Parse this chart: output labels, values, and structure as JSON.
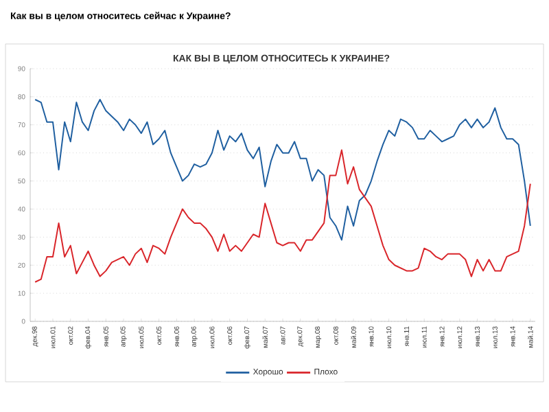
{
  "chart_data": {
    "type": "line",
    "title": "Как вы в целом относитесь сейчас к Украине?",
    "subtitle": "КАК ВЫ В ЦЕЛОМ ОТНОСИТЕСЬ К УКРАИНЕ?",
    "categories": [
      "дек.98",
      null,
      null,
      "июл.01",
      null,
      null,
      "окт.02",
      null,
      null,
      "фев.04",
      null,
      null,
      "янв.05",
      null,
      null,
      "апр.05",
      null,
      null,
      "июл.05",
      null,
      null,
      "окт.05",
      null,
      null,
      "янв.06",
      null,
      null,
      "апр.06",
      null,
      null,
      "июл.06",
      null,
      null,
      "окт.06",
      null,
      null,
      "фев.07",
      null,
      null,
      "май.07",
      null,
      null,
      "авг.07",
      null,
      null,
      "дек.07",
      null,
      null,
      "мар.08",
      null,
      null,
      "окт.08",
      null,
      null,
      "май.09",
      null,
      null,
      "янв.10",
      null,
      null,
      "июл.10",
      null,
      null,
      "янв.11",
      null,
      null,
      "июл.11",
      null,
      null,
      "янв.12",
      null,
      null,
      "июл.12",
      null,
      null,
      "янв.13",
      null,
      null,
      "июл.13",
      null,
      null,
      "янв.14",
      null,
      null,
      "май.14"
    ],
    "series": [
      {
        "name": "Хорошо",
        "color": "#1f5fa0",
        "values": [
          79,
          78,
          71,
          71,
          54,
          71,
          64,
          78,
          71,
          68,
          75,
          79,
          75,
          73,
          71,
          68,
          72,
          70,
          67,
          71,
          63,
          65,
          68,
          60,
          55,
          50,
          52,
          56,
          55,
          56,
          60,
          68,
          61,
          66,
          64,
          67,
          61,
          58,
          62,
          48,
          57,
          63,
          60,
          60,
          64,
          58,
          58,
          50,
          54,
          52,
          37,
          34,
          29,
          41,
          34,
          43,
          45,
          50,
          57,
          63,
          68,
          66,
          72,
          71,
          69,
          65,
          65,
          68,
          66,
          64,
          65,
          66,
          70,
          72,
          69,
          72,
          69,
          71,
          76,
          69,
          65,
          65,
          63,
          50,
          34
        ]
      },
      {
        "name": "Плохо",
        "color": "#d9252a",
        "values": [
          14,
          15,
          23,
          23,
          35,
          23,
          27,
          17,
          21,
          25,
          20,
          16,
          18,
          21,
          22,
          23,
          20,
          24,
          26,
          21,
          27,
          26,
          24,
          30,
          35,
          40,
          37,
          35,
          35,
          33,
          30,
          25,
          31,
          25,
          27,
          25,
          28,
          31,
          30,
          42,
          35,
          28,
          27,
          28,
          28,
          25,
          29,
          29,
          32,
          35,
          52,
          52,
          61,
          49,
          55,
          47,
          44,
          41,
          34,
          27,
          22,
          20,
          19,
          18,
          18,
          19,
          26,
          25,
          23,
          22,
          24,
          24,
          24,
          22,
          16,
          22,
          18,
          22,
          18,
          18,
          23,
          24,
          25,
          34,
          49
        ]
      }
    ],
    "ylim": [
      0,
      90
    ],
    "yticks": [
      0,
      10,
      20,
      30,
      40,
      50,
      60,
      70,
      80,
      90
    ],
    "grid": "y",
    "legend": "bottom"
  }
}
